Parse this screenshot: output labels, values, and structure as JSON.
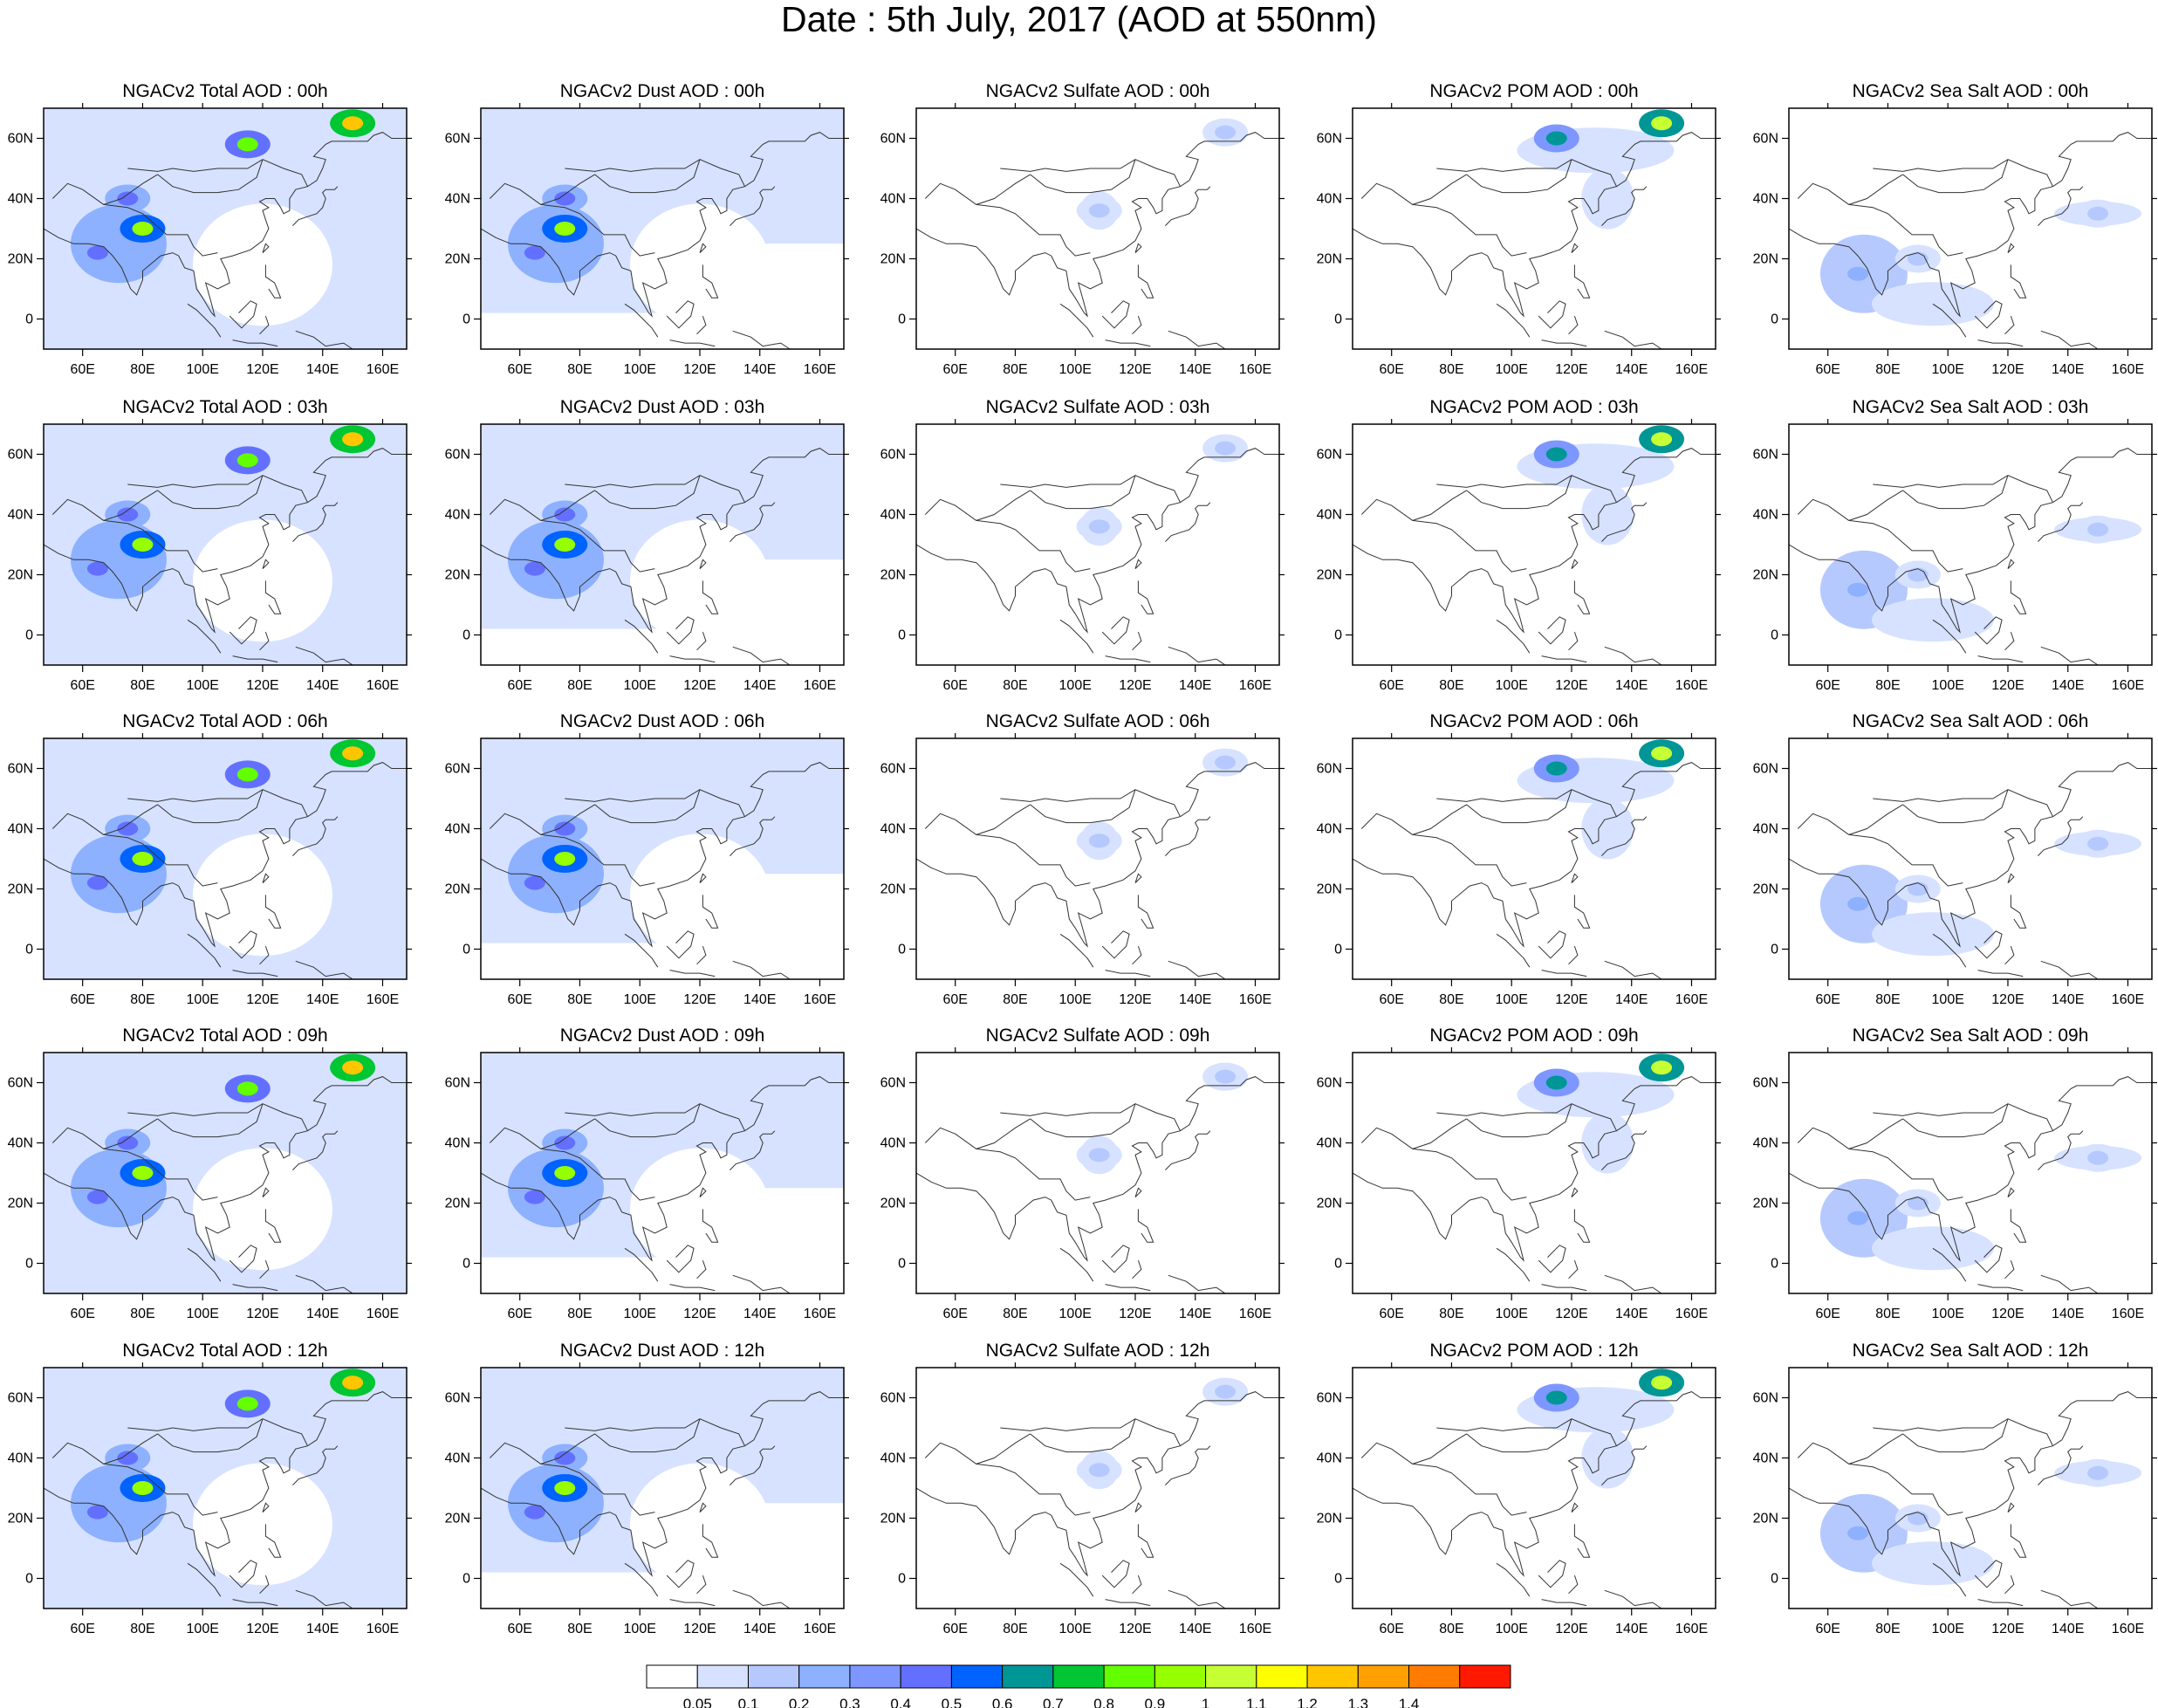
{
  "title": "Date : 5th July, 2017 (AOD at 550nm)",
  "colorbar": {
    "levels": [
      "0.05",
      "0.1",
      "0.2",
      "0.3",
      "0.4",
      "0.5",
      "0.6",
      "0.7",
      "0.8",
      "0.9",
      "1",
      "1.1",
      "1.2",
      "1.3",
      "1.4"
    ],
    "colors": [
      "#ffffff",
      "#d6e2ff",
      "#b5c9ff",
      "#8db1ff",
      "#7e96ff",
      "#6370ff",
      "#0063ff",
      "#009696",
      "#00c633",
      "#63ff00",
      "#96ff00",
      "#c6ff33",
      "#ffff00",
      "#ffc600",
      "#ffa000",
      "#ff7c00",
      "#ff1900"
    ]
  },
  "panel_axes": {
    "x_ticks": [
      "60E",
      "80E",
      "100E",
      "120E",
      "140E",
      "160E"
    ],
    "y_ticks": [
      "60N",
      "40N",
      "20N",
      "0"
    ]
  },
  "chart_data": {
    "type": "heatmap",
    "description_of_grid": "5 rows (forecast hours) x 5 columns (aerosol species) of filled-contour maps over Asia",
    "xlim": [
      47,
      168
    ],
    "ylim": [
      -10,
      70
    ],
    "row_hours": [
      "00h",
      "03h",
      "06h",
      "09h",
      "12h"
    ],
    "column_species": [
      "Total",
      "Dust",
      "Sulfate",
      "POM",
      "Sea Salt"
    ],
    "panel_titles": [
      [
        "NGACv2 Total AOD : 00h",
        "NGACv2 Dust AOD : 00h",
        "NGACv2 Sulfate AOD : 00h",
        "NGACv2 POM AOD : 00h",
        "NGACv2 Sea Salt AOD : 00h"
      ],
      [
        "NGACv2 Total AOD : 03h",
        "NGACv2 Dust AOD : 03h",
        "NGACv2 Sulfate AOD : 03h",
        "NGACv2 POM AOD : 03h",
        "NGACv2 Sea Salt AOD : 03h"
      ],
      [
        "NGACv2 Total AOD : 06h",
        "NGACv2 Dust AOD : 06h",
        "NGACv2 Sulfate AOD : 06h",
        "NGACv2 POM AOD : 06h",
        "NGACv2 Sea Salt AOD : 06h"
      ],
      [
        "NGACv2 Total AOD : 09h",
        "NGACv2 Dust AOD : 09h",
        "NGACv2 Sulfate AOD : 09h",
        "NGACv2 POM AOD : 09h",
        "NGACv2 Sea Salt  AOD : 09h"
      ],
      [
        "NGACv2 Total AOD  : 12h",
        "NGACv2 Dust AOD : 12h",
        "NGACv2 Sulfate AOD : 12h",
        "NGACv2 POM  AOD : 12h",
        "NGACv2 Sea Salt  AOD : 12h"
      ]
    ],
    "features": {
      "Total": [
        {
          "lon": 80,
          "lat": 30,
          "value": 0.9
        },
        {
          "lon": 65,
          "lat": 22,
          "value": 0.45
        },
        {
          "lon": 75,
          "lat": 40,
          "value": 0.4
        },
        {
          "lon": 115,
          "lat": 58,
          "value": 0.8
        },
        {
          "lon": 150,
          "lat": 65,
          "value": 1.2
        }
      ],
      "Dust": [
        {
          "lon": 75,
          "lat": 30,
          "value": 0.9
        },
        {
          "lon": 65,
          "lat": 22,
          "value": 0.4
        },
        {
          "lon": 75,
          "lat": 40,
          "value": 0.4
        }
      ],
      "Sulfate": [
        {
          "lon": 108,
          "lat": 36,
          "value": 0.1
        },
        {
          "lon": 150,
          "lat": 62,
          "value": 0.1
        }
      ],
      "POM": [
        {
          "lon": 115,
          "lat": 60,
          "value": 0.6
        },
        {
          "lon": 150,
          "lat": 65,
          "value": 1.0
        }
      ],
      "Sea Salt": [
        {
          "lon": 70,
          "lat": 15,
          "value": 0.2
        },
        {
          "lon": 90,
          "lat": 20,
          "value": 0.1
        },
        {
          "lon": 150,
          "lat": 35,
          "value": 0.1
        }
      ]
    }
  }
}
